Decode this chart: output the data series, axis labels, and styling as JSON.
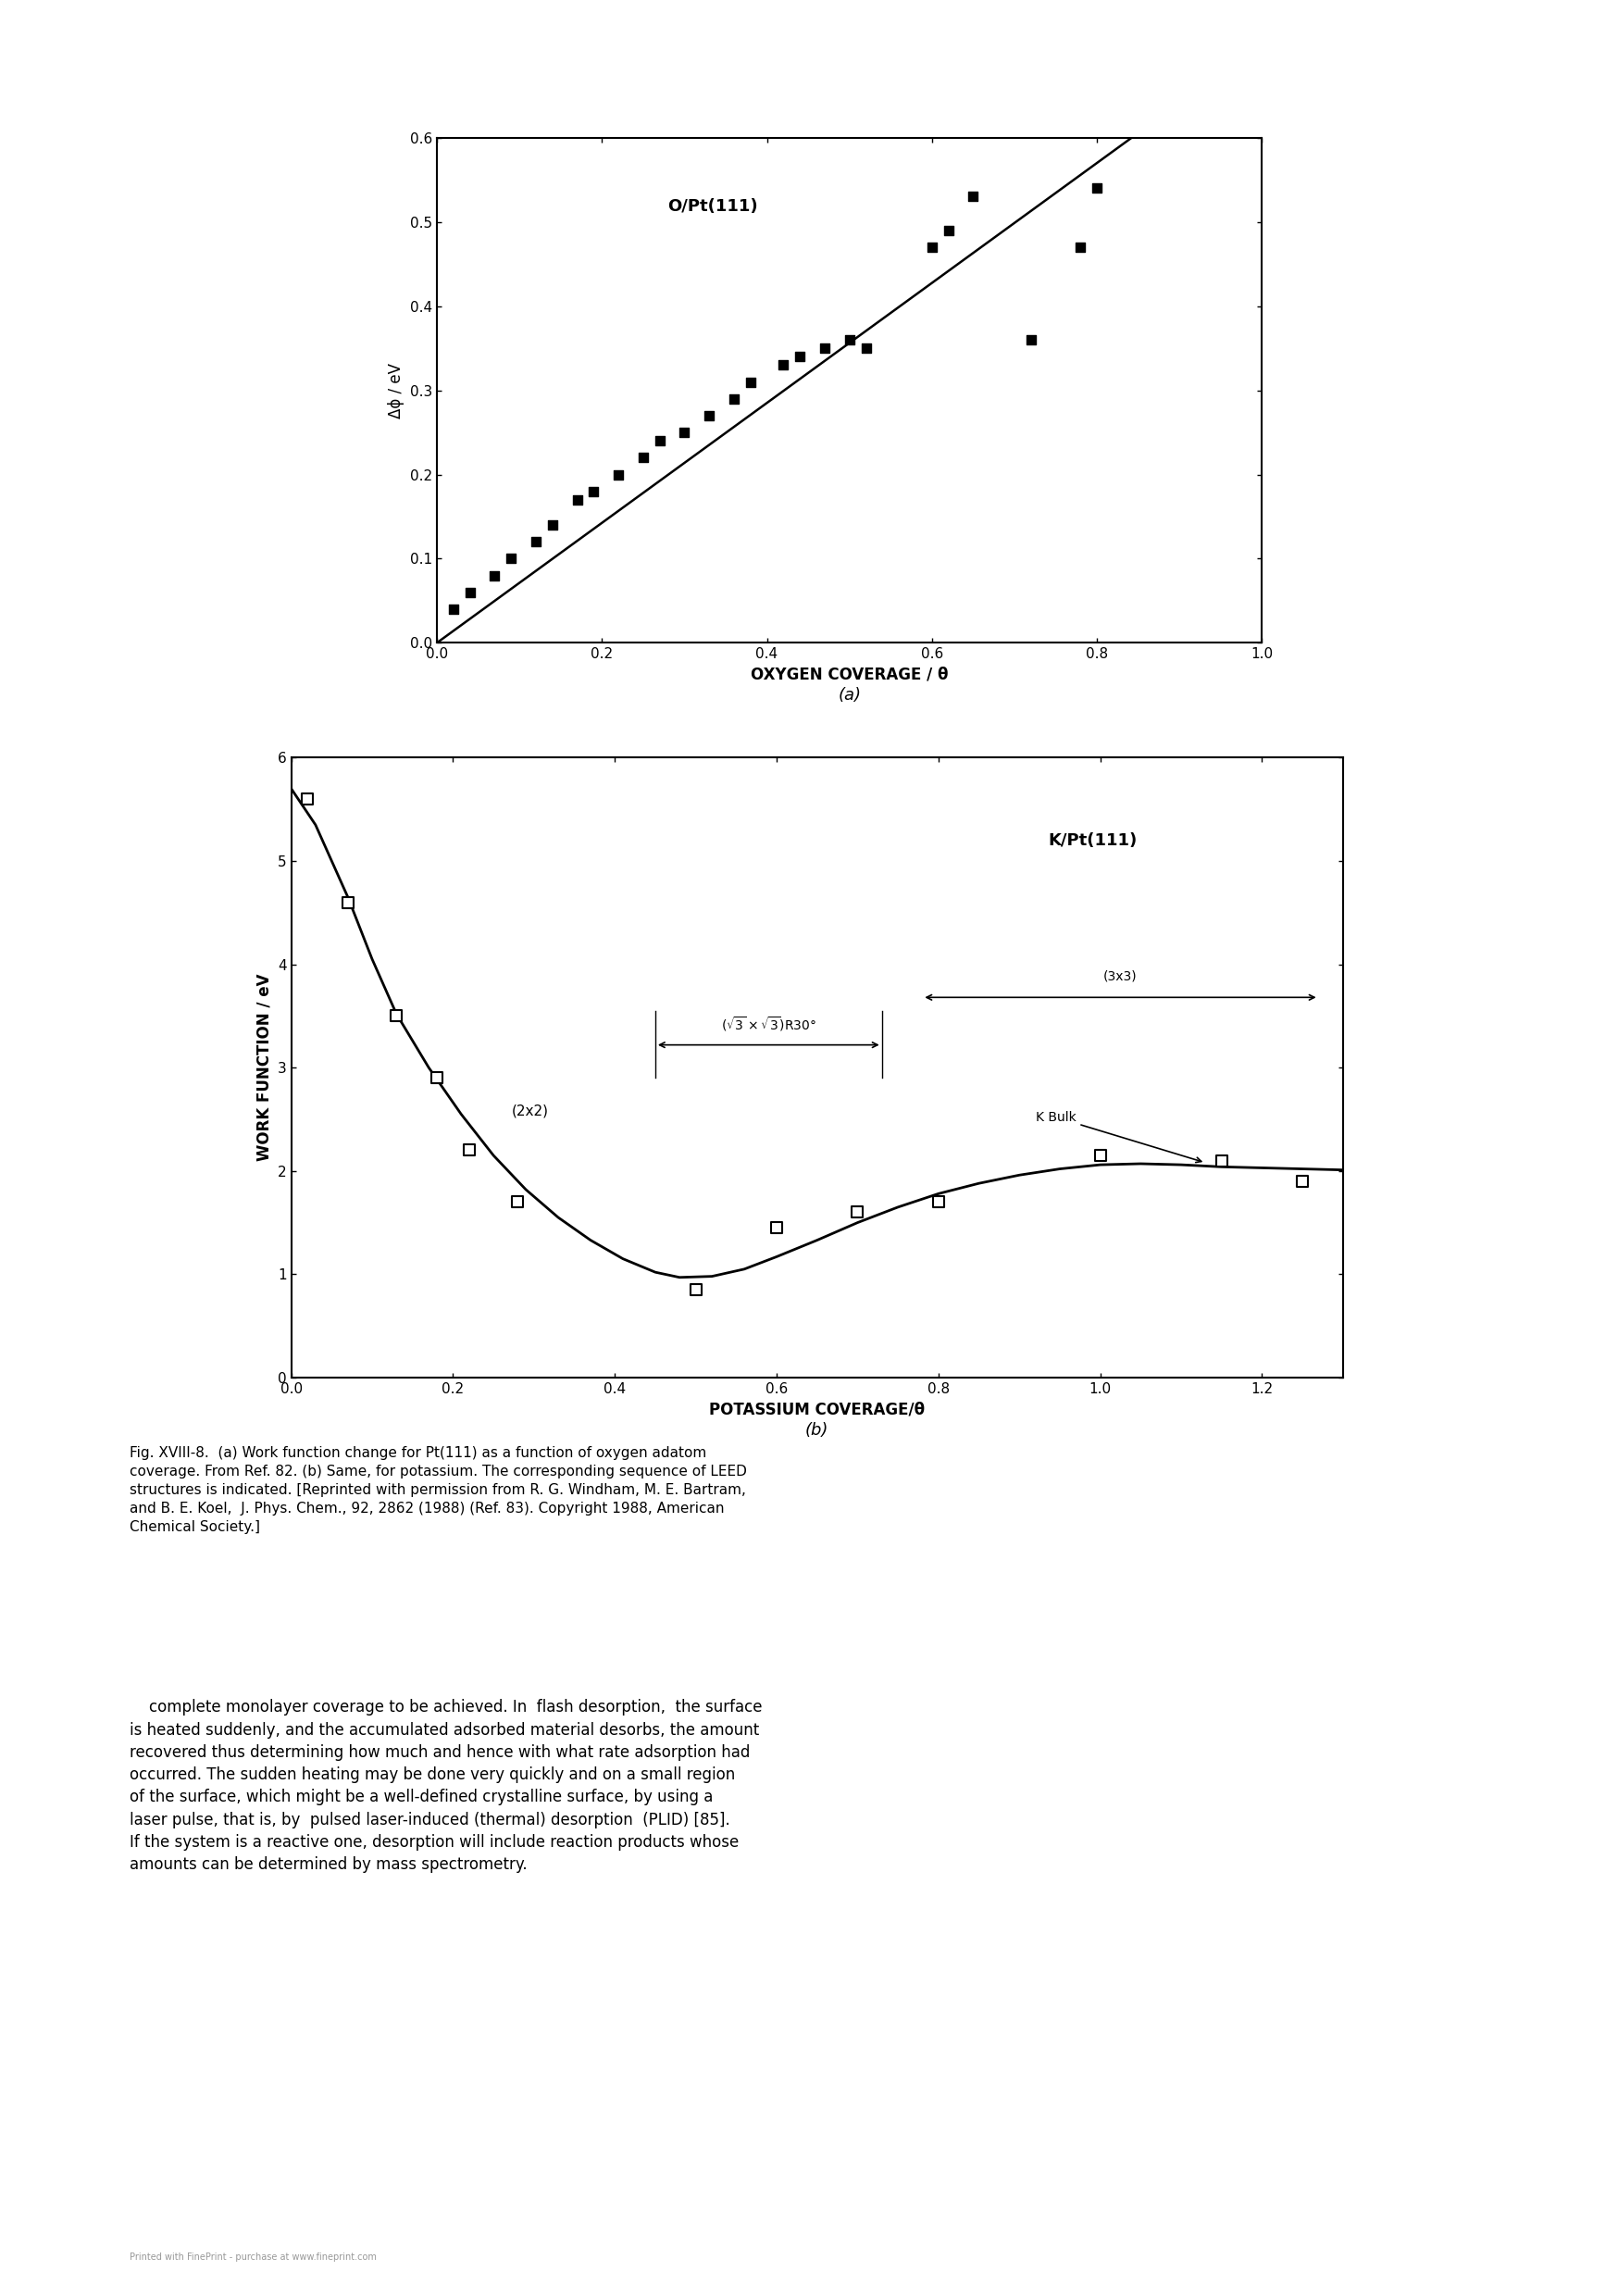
{
  "plot_a": {
    "title": "O/Pt(111)",
    "xlabel": "OXYGEN COVERAGE / θ",
    "ylabel": "Δϕ / eV",
    "label_a": "(a)",
    "xlim": [
      0.0,
      1.0
    ],
    "ylim": [
      0.0,
      0.6
    ],
    "xticks": [
      0.0,
      0.2,
      0.4,
      0.6,
      0.8,
      1.0
    ],
    "yticks": [
      0.0,
      0.1,
      0.2,
      0.3,
      0.4,
      0.5,
      0.6
    ],
    "scatter_x": [
      0.02,
      0.04,
      0.07,
      0.09,
      0.12,
      0.14,
      0.17,
      0.19,
      0.22,
      0.25,
      0.27,
      0.3,
      0.33,
      0.36,
      0.38,
      0.42,
      0.44,
      0.47,
      0.5,
      0.52,
      0.6,
      0.62,
      0.65,
      0.72,
      0.78,
      0.8
    ],
    "scatter_y": [
      0.04,
      0.06,
      0.08,
      0.1,
      0.12,
      0.14,
      0.17,
      0.18,
      0.2,
      0.22,
      0.24,
      0.25,
      0.27,
      0.29,
      0.31,
      0.33,
      0.34,
      0.35,
      0.36,
      0.35,
      0.47,
      0.49,
      0.53,
      0.36,
      0.47,
      0.54
    ],
    "line_x": [
      0.0,
      0.87
    ],
    "line_y": [
      0.0,
      0.62
    ],
    "marker": "s",
    "marker_color": "black",
    "marker_size": 7,
    "line_color": "black",
    "line_width": 1.8
  },
  "plot_b": {
    "title": "K/Pt(111)",
    "xlabel": "POTASSIUM COVERAGE/θ",
    "ylabel": "WORK FUNCTION / eV",
    "label_b": "(b)",
    "xlim": [
      0.0,
      1.3
    ],
    "ylim": [
      0,
      6
    ],
    "xticks": [
      0.0,
      0.2,
      0.4,
      0.6,
      0.8,
      1.0,
      1.2
    ],
    "yticks": [
      0,
      1,
      2,
      3,
      4,
      5,
      6
    ],
    "scatter_x": [
      0.02,
      0.07,
      0.13,
      0.18,
      0.22,
      0.28,
      0.5,
      0.6,
      0.7,
      0.8,
      1.0,
      1.15,
      1.25
    ],
    "scatter_y": [
      5.6,
      4.6,
      3.5,
      2.9,
      2.2,
      1.7,
      0.85,
      1.45,
      1.6,
      1.7,
      2.15,
      2.1,
      1.9
    ],
    "curve_x": [
      0.0,
      0.03,
      0.07,
      0.1,
      0.13,
      0.17,
      0.21,
      0.25,
      0.29,
      0.33,
      0.37,
      0.41,
      0.45,
      0.48,
      0.52,
      0.56,
      0.6,
      0.65,
      0.7,
      0.75,
      0.8,
      0.85,
      0.9,
      0.95,
      1.0,
      1.05,
      1.1,
      1.15,
      1.2,
      1.25,
      1.3
    ],
    "curve_y": [
      5.7,
      5.35,
      4.65,
      4.05,
      3.52,
      3.0,
      2.55,
      2.15,
      1.82,
      1.55,
      1.33,
      1.15,
      1.02,
      0.97,
      0.98,
      1.05,
      1.17,
      1.33,
      1.5,
      1.65,
      1.78,
      1.88,
      1.96,
      2.02,
      2.06,
      2.07,
      2.06,
      2.04,
      2.03,
      2.02,
      2.01
    ],
    "marker": "s",
    "marker_color": "black",
    "marker_facecolor": "white",
    "marker_size": 8,
    "line_color": "black",
    "line_width": 2.0
  },
  "watermark": "Printed with FinePrint - purchase at www.fineprint.com",
  "bg_color": "#ffffff",
  "text_color": "#000000"
}
